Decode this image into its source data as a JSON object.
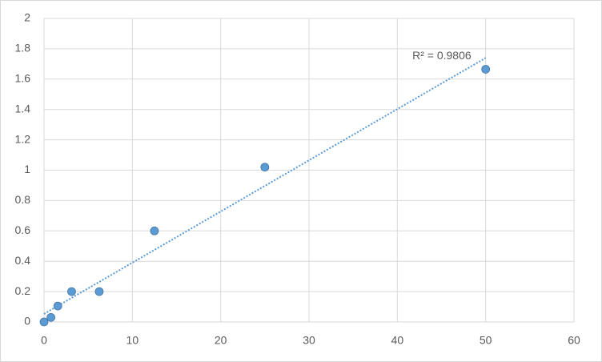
{
  "chart_data": {
    "type": "scatter",
    "series": [
      {
        "color": "#5b9bd5",
        "x": [
          0,
          0.78,
          1.56,
          3.125,
          6.25,
          12.5,
          25,
          50
        ],
        "values": [
          0,
          0.03,
          0.105,
          0.2,
          0.2,
          0.6,
          1.02,
          1.665
        ]
      }
    ],
    "trendline": {
      "color": "#5b9bd5",
      "x": [
        0,
        50
      ],
      "values": [
        0.053,
        1.74
      ],
      "label": "R² = 0.9806"
    },
    "xlim": [
      0,
      60
    ],
    "xticks": [
      0,
      10,
      20,
      30,
      40,
      50,
      60
    ],
    "ylim": [
      0,
      2
    ],
    "yticks": [
      0,
      0.2,
      0.4,
      0.6,
      0.8,
      1,
      1.2,
      1.4,
      1.6,
      1.8,
      2
    ],
    "grid": true
  }
}
